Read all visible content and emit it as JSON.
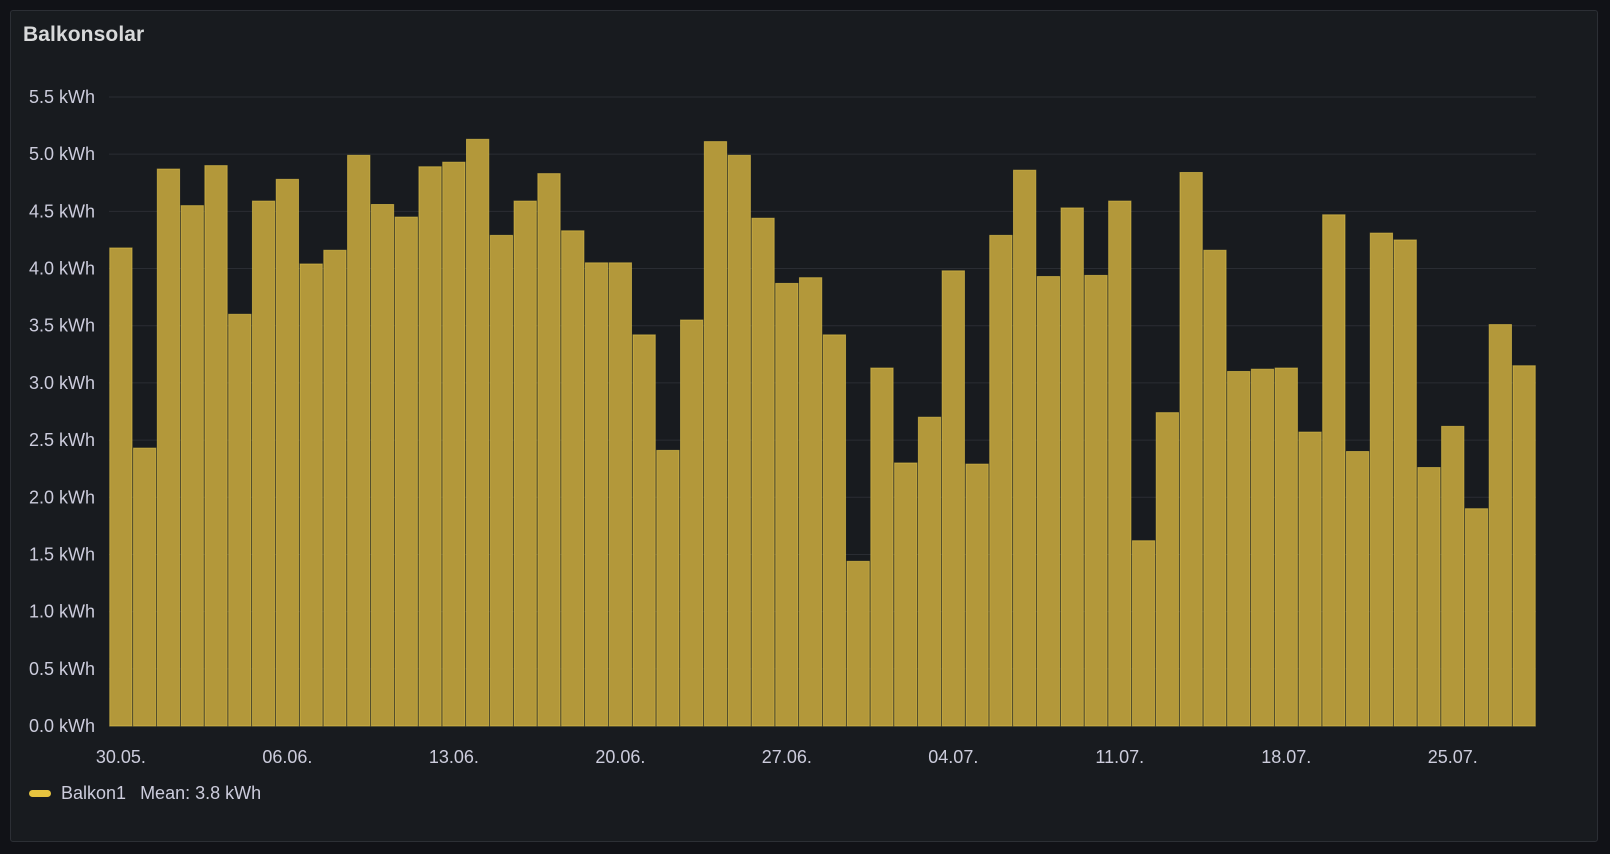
{
  "panel": {
    "title": "Balkonsolar"
  },
  "legend": {
    "series_name": "Balkon1",
    "mean_text": "Mean: 3.8 kWh"
  },
  "colors": {
    "bar_fill": "#b3983a",
    "bar_stroke": "#e3c44b",
    "grid": "#2a2d33",
    "text": "#ccccdc",
    "legend_swatch": "#e6c33f"
  },
  "chart_data": {
    "type": "bar",
    "title": "Balkonsolar",
    "unit": "kWh",
    "ylim": [
      0,
      5.5
    ],
    "yticks": [
      0,
      0.5,
      1.0,
      1.5,
      2.0,
      2.5,
      3.0,
      3.5,
      4.0,
      4.5,
      5.0,
      5.5
    ],
    "ytick_labels": [
      "0.0 kWh",
      "0.5 kWh",
      "1.0 kWh",
      "1.5 kWh",
      "2.0 kWh",
      "2.5 kWh",
      "3.0 kWh",
      "3.5 kWh",
      "4.0 kWh",
      "4.5 kWh",
      "5.0 kWh",
      "5.5 kWh"
    ],
    "xtick_labels": [
      "30.05.",
      "06.06.",
      "13.06.",
      "20.06.",
      "27.06.",
      "04.07.",
      "11.07.",
      "18.07.",
      "25.07."
    ],
    "xtick_positions": [
      0,
      7,
      14,
      21,
      28,
      35,
      42,
      49,
      56
    ],
    "grid": true,
    "legend_position": "bottom-left",
    "categories": [
      "30.05.",
      "31.05.",
      "01.06.",
      "02.06.",
      "03.06.",
      "04.06.",
      "05.06.",
      "06.06.",
      "07.06.",
      "08.06.",
      "09.06.",
      "10.06.",
      "11.06.",
      "12.06.",
      "13.06.",
      "14.06.",
      "15.06.",
      "16.06.",
      "17.06.",
      "18.06.",
      "19.06.",
      "20.06.",
      "21.06.",
      "22.06.",
      "23.06.",
      "24.06.",
      "25.06.",
      "26.06.",
      "27.06.",
      "28.06.",
      "29.06.",
      "30.06.",
      "01.07.",
      "02.07.",
      "03.07.",
      "04.07.",
      "05.07.",
      "06.07.",
      "07.07.",
      "08.07.",
      "09.07.",
      "10.07.",
      "11.07.",
      "12.07.",
      "13.07.",
      "14.07.",
      "15.07.",
      "16.07.",
      "17.07.",
      "18.07.",
      "19.07.",
      "20.07.",
      "21.07.",
      "22.07.",
      "23.07.",
      "24.07.",
      "25.07.",
      "26.07.",
      "27.07.",
      "28.07."
    ],
    "series": [
      {
        "name": "Balkon1",
        "values": [
          4.18,
          2.43,
          4.87,
          4.55,
          4.9,
          3.6,
          4.59,
          4.78,
          4.04,
          4.16,
          4.99,
          4.56,
          4.45,
          4.89,
          4.93,
          5.13,
          4.29,
          4.59,
          4.83,
          4.33,
          4.05,
          4.05,
          3.42,
          2.41,
          3.55,
          5.11,
          4.99,
          4.44,
          3.87,
          3.92,
          3.42,
          1.44,
          3.13,
          2.3,
          2.7,
          3.98,
          2.29,
          4.29,
          4.86,
          3.93,
          4.53,
          3.94,
          4.59,
          1.62,
          2.74,
          4.84,
          4.16,
          3.1,
          3.12,
          3.13,
          2.57,
          4.47,
          2.4,
          4.31,
          4.25,
          2.26,
          2.62,
          1.9,
          3.51,
          3.15
        ]
      }
    ]
  }
}
